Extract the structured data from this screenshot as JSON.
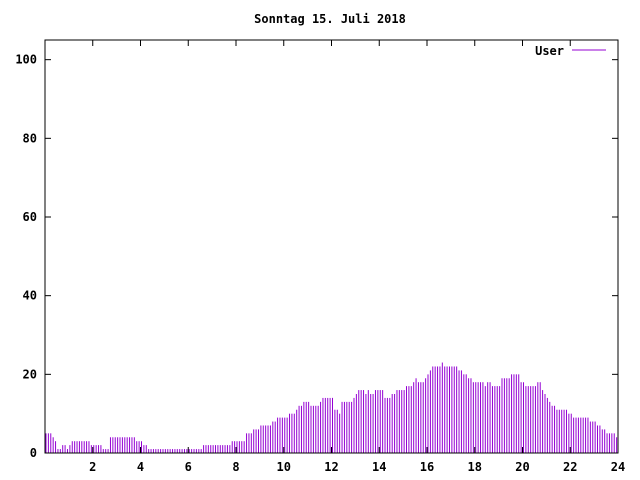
{
  "chart_data": {
    "type": "bar",
    "title": "Sonntag 15. Juli 2018",
    "xlabel": "",
    "ylabel": "",
    "xlim": [
      0,
      24
    ],
    "ylim": [
      0,
      105
    ],
    "x_ticks": [
      2,
      4,
      6,
      8,
      10,
      12,
      14,
      16,
      18,
      20,
      22,
      24
    ],
    "y_ticks": [
      0,
      20,
      40,
      60,
      80,
      100
    ],
    "grid": false,
    "legend": "top-right",
    "colors": {
      "series": "#9400d3",
      "axis": "#000000",
      "background": "#ffffff"
    },
    "series": [
      {
        "name": "User",
        "x_step_hours": 0.1,
        "values": [
          5,
          5,
          5,
          4,
          3,
          1,
          1,
          2,
          2,
          1,
          2,
          3,
          3,
          3,
          3,
          3,
          3,
          3,
          3,
          2,
          2,
          2,
          2,
          2,
          1,
          1,
          1,
          4,
          4,
          4,
          4,
          4,
          4,
          4,
          4,
          4,
          4,
          4,
          3,
          3,
          3,
          2,
          2,
          1,
          1,
          1,
          1,
          1,
          1,
          1,
          1,
          1,
          1,
          1,
          1,
          1,
          1,
          1,
          1,
          1,
          1,
          1,
          1,
          1,
          1,
          1,
          2,
          2,
          2,
          2,
          2,
          2,
          2,
          2,
          2,
          2,
          2,
          2,
          3,
          3,
          3,
          3,
          3,
          3,
          5,
          5,
          5,
          6,
          6,
          6,
          7,
          7,
          7,
          7,
          7,
          8,
          8,
          9,
          9,
          9,
          9,
          9,
          10,
          10,
          10,
          11,
          12,
          12,
          13,
          13,
          13,
          12,
          12,
          12,
          12,
          13,
          14,
          14,
          14,
          14,
          14,
          11,
          11,
          10,
          13,
          13,
          13,
          13,
          13,
          14,
          15,
          16,
          16,
          16,
          15,
          16,
          15,
          15,
          16,
          16,
          16,
          16,
          14,
          14,
          14,
          15,
          15,
          16,
          16,
          16,
          16,
          17,
          17,
          17,
          18,
          19,
          18,
          18,
          18,
          19,
          20,
          21,
          22,
          22,
          22,
          22,
          23,
          22,
          22,
          22,
          22,
          22,
          22,
          21,
          21,
          20,
          20,
          19,
          19,
          18,
          18,
          18,
          18,
          18,
          17,
          18,
          18,
          17,
          17,
          17,
          17,
          19,
          19,
          19,
          19,
          20,
          20,
          20,
          20,
          18,
          18,
          17,
          17,
          17,
          17,
          17,
          18,
          18,
          16,
          15,
          14,
          13,
          12,
          12,
          11,
          11,
          11,
          11,
          11,
          10,
          10,
          9,
          9,
          9,
          9,
          9,
          9,
          9,
          8,
          8,
          8,
          7,
          7,
          6,
          6,
          5,
          5,
          5,
          5,
          4
        ]
      }
    ]
  }
}
